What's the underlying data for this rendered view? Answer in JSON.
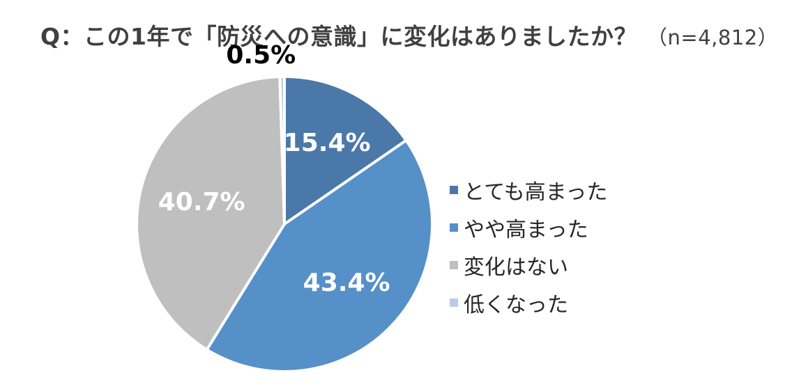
{
  "chart_data": {
    "type": "pie",
    "title": "Q：この1年で「防災への意識」に変化はありましたか？",
    "subtitle": "（n=4,812）",
    "categories": [
      "とても高まった",
      "やや高まった",
      "変化はない",
      "低くなった"
    ],
    "values": [
      15.4,
      43.4,
      40.7,
      0.5
    ],
    "value_labels": [
      "15.4%",
      "43.4%",
      "40.7%",
      "0.5%"
    ],
    "colors": [
      "#4a78a8",
      "#5590c8",
      "#bfbfbf",
      "#b8cde6"
    ],
    "label_colors": [
      "#ffffff",
      "#ffffff",
      "#ffffff",
      "#000000"
    ],
    "start_angle_deg": 0,
    "direction": "clockwise",
    "legend_position": "right"
  }
}
